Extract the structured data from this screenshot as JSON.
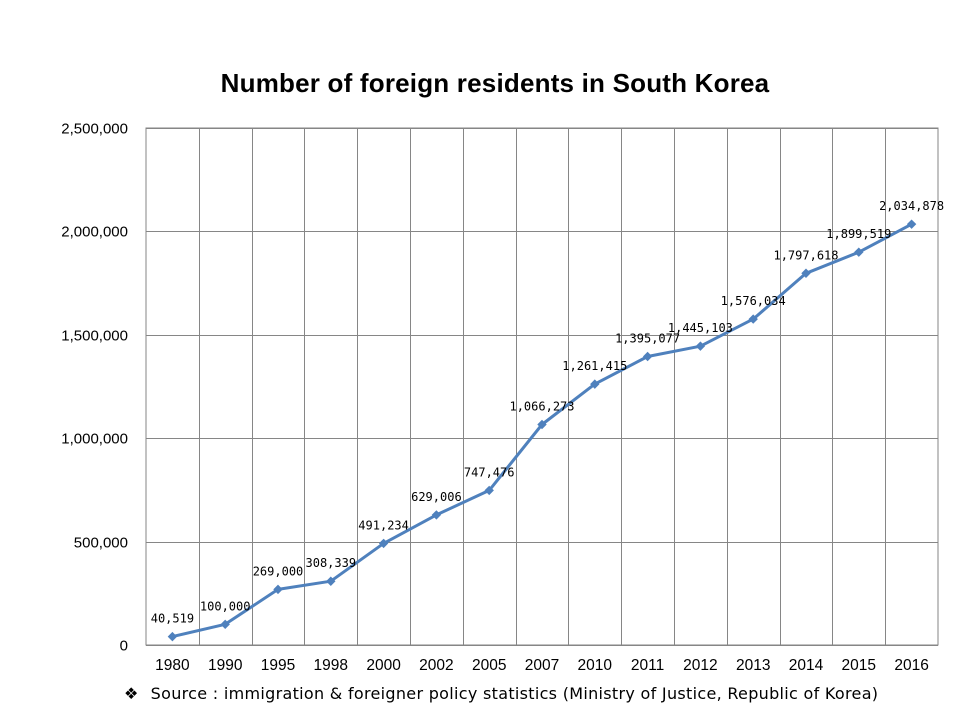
{
  "chart_data": {
    "type": "line",
    "title": "Number of foreign residents in South Korea",
    "xlabel": "",
    "ylabel": "",
    "ylim": [
      0,
      2500000
    ],
    "yticks": [
      "0",
      "500,000",
      "1,000,000",
      "1,500,000",
      "2,000,000",
      "2,500,000"
    ],
    "ytick_values": [
      0,
      500000,
      1000000,
      1500000,
      2000000,
      2500000
    ],
    "grid": true,
    "categories": [
      "1980",
      "1990",
      "1995",
      "1998",
      "2000",
      "2002",
      "2005",
      "2007",
      "2010",
      "2011",
      "2012",
      "2013",
      "2014",
      "2015",
      "2016"
    ],
    "series": [
      {
        "name": "Foreign residents",
        "color": "#4F81BD",
        "values": [
          40519,
          100000,
          269000,
          308339,
          491234,
          629006,
          747476,
          1066273,
          1261415,
          1395077,
          1445103,
          1576034,
          1797618,
          1899519,
          2034878
        ],
        "labels": [
          "40,519",
          "100,000",
          "269,000",
          "308,339",
          "491,234",
          "629,006",
          "747,476",
          "1,066,273",
          "1,261,415",
          "1,395,077",
          "1,445,103",
          "1,576,034",
          "1,797,618",
          "1,899,519",
          "2,034,878"
        ]
      }
    ]
  },
  "source": {
    "bullet": "❖",
    "text": "Source : immigration & foreigner policy statistics (Ministry of Justice, Republic of Korea)"
  }
}
